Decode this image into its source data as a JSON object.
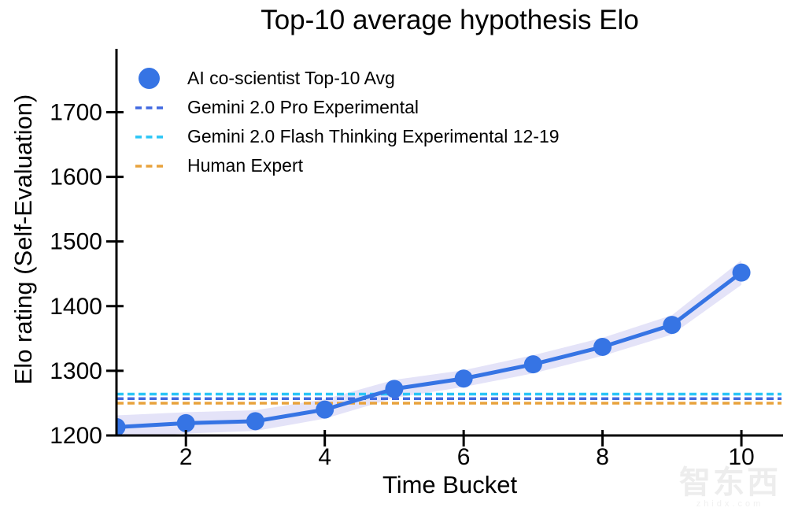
{
  "chart_data": {
    "type": "line",
    "title": "Top-10 average hypothesis Elo",
    "xlabel": "Time Bucket",
    "ylabel": "Elo rating (Self-Evaluation)",
    "x": [
      1,
      2,
      3,
      4,
      5,
      6,
      7,
      8,
      9,
      10
    ],
    "xticks": [
      2,
      4,
      6,
      8,
      10
    ],
    "yticks": [
      1200,
      1300,
      1400,
      1500,
      1600,
      1700
    ],
    "xlim": [
      1,
      10.6
    ],
    "ylim": [
      1200,
      1798
    ],
    "grid": false,
    "legend_position": "upper left",
    "series": [
      {
        "name": "AI co-scientist Top-10 Avg",
        "type": "line",
        "marker": "circle",
        "color": "#3674E4",
        "values": [
          1213,
          1219,
          1222,
          1240,
          1272,
          1288,
          1310,
          1337,
          1371,
          1452
        ],
        "band_upper": [
          1231,
          1236,
          1239,
          1256,
          1286,
          1301,
          1324,
          1351,
          1386,
          1471
        ],
        "band_lower": [
          1196,
          1203,
          1207,
          1226,
          1258,
          1275,
          1296,
          1323,
          1356,
          1433
        ],
        "band_color": "#E4E3F8"
      },
      {
        "name": "Gemini 2.0 Pro Experimental",
        "type": "hline",
        "style": "dashed",
        "color": "#4169E1",
        "value": 1257
      },
      {
        "name": "Gemini 2.0 Flash Thinking Experimental 12-19",
        "type": "hline",
        "style": "dashed",
        "color": "#29C5F6",
        "value": 1264
      },
      {
        "name": "Human Expert",
        "type": "hline",
        "style": "dashed",
        "color": "#E8A33D",
        "value": 1250
      }
    ]
  },
  "watermark": {
    "text": "智东西",
    "subtext": "zhidx.com"
  }
}
